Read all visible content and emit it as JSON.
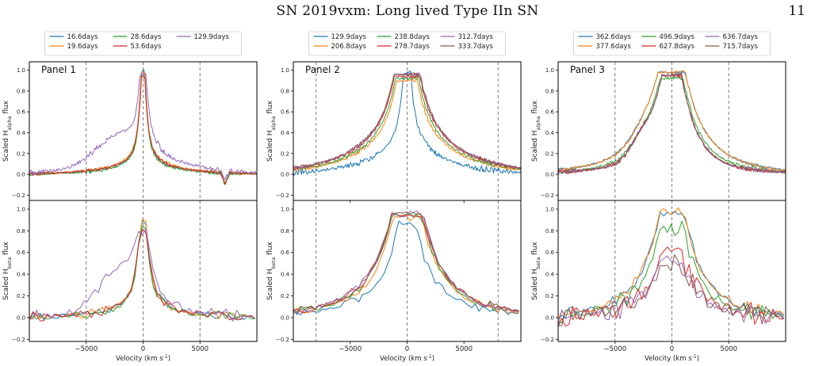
{
  "header": {
    "running_title": "SN 2019vxm: Long lived Type IIn SN",
    "page_number": "11"
  },
  "colors": [
    "#1f77b4",
    "#ff7f0e",
    "#2ca02c",
    "#d62728",
    "#9467bd",
    "#8c564b"
  ],
  "chart_data": [
    {
      "type": "line",
      "panel_label": "Panel 1",
      "xlabel": "Velocity (km s$^{-1}$)",
      "ylabel_top": "Scaled H$_{alpha}$ flux",
      "ylabel_bottom": "Scaled H$_{beta}$ flux",
      "xlim": [
        -10000,
        10000
      ],
      "ylim_top": [
        -0.25,
        1.08
      ],
      "ylim_bottom": [
        -0.22,
        1.08
      ],
      "xticks": [
        -5000,
        0,
        5000
      ],
      "yticks": [
        -0.2,
        0.0,
        0.2,
        0.4,
        0.6,
        0.8,
        1.0
      ],
      "dashed_lines": [
        -5000,
        0,
        5000
      ],
      "legend_columns": 3,
      "legend": [
        "16.6days",
        "19.6days",
        "28.6days",
        "53.6days",
        "129.9days"
      ],
      "series": [
        {
          "name": "16.6days",
          "color_index": 0,
          "top": {
            "peak": 1.0,
            "core": 320,
            "wing": 0.16,
            "wscale": 2800,
            "broad": 0,
            "bshift": 0,
            "bwidth": 2000,
            "noise": 0.012
          },
          "bottom": {
            "peak": 0.92,
            "core": 500,
            "wing": 0.15,
            "wscale": 2600,
            "broad": 0,
            "bshift": 0,
            "bwidth": 2000,
            "noise": 0.03
          }
        },
        {
          "name": "19.6days",
          "color_index": 1,
          "top": {
            "peak": 0.98,
            "core": 330,
            "wing": 0.18,
            "wscale": 2900,
            "broad": 0,
            "bshift": 0,
            "bwidth": 2000,
            "noise": 0.012
          },
          "bottom": {
            "peak": 0.88,
            "core": 520,
            "wing": 0.16,
            "wscale": 2700,
            "broad": 0,
            "bshift": 0,
            "bwidth": 2000,
            "noise": 0.03
          }
        },
        {
          "name": "28.6days",
          "color_index": 2,
          "top": {
            "peak": 0.95,
            "core": 330,
            "wing": 0.14,
            "wscale": 2700,
            "broad": 0,
            "bshift": 0,
            "bwidth": 2000,
            "noise": 0.014
          },
          "bottom": {
            "peak": 0.84,
            "core": 520,
            "wing": 0.14,
            "wscale": 2600,
            "broad": 0,
            "bshift": 0,
            "bwidth": 2000,
            "noise": 0.035
          }
        },
        {
          "name": "53.6days",
          "color_index": 3,
          "top": {
            "peak": 0.94,
            "core": 340,
            "wing": 0.16,
            "wscale": 2900,
            "broad": 0,
            "bshift": 0,
            "bwidth": 2000,
            "noise": 0.013
          },
          "bottom": {
            "peak": 0.82,
            "core": 540,
            "wing": 0.15,
            "wscale": 2700,
            "broad": 0,
            "bshift": 0,
            "bwidth": 2000,
            "noise": 0.035
          }
        },
        {
          "name": "129.9days",
          "color_index": 4,
          "top": {
            "peak": 0.96,
            "core": 360,
            "wing": 0.28,
            "wscale": 3600,
            "broad": 0.22,
            "bshift": -2500,
            "bwidth": 2600,
            "noise": 0.02
          },
          "bottom": {
            "peak": 0.8,
            "core": 560,
            "wing": 0.2,
            "wscale": 3300,
            "broad": 0.32,
            "bshift": -2300,
            "bwidth": 2400,
            "noise": 0.045
          }
        }
      ]
    },
    {
      "type": "line",
      "panel_label": "Panel 2",
      "xlabel": "Velocity (km s$^{-1}$)",
      "ylabel_top": "Scaled H$_{alpha}$ flux",
      "ylabel_bottom": "Scaled H$_{beta}$ flux",
      "xlim": [
        -10000,
        10000
      ],
      "ylim_top": [
        -0.25,
        1.08
      ],
      "ylim_bottom": [
        -0.22,
        1.08
      ],
      "xticks": [
        -5000,
        0,
        5000
      ],
      "yticks": [
        -0.2,
        0.0,
        0.2,
        0.4,
        0.6,
        0.8,
        1.0
      ],
      "dashed_lines": [
        -8000,
        0,
        8000
      ],
      "legend_columns": 3,
      "legend": [
        "129.9days",
        "206.8days",
        "238.8days",
        "278.7days",
        "312.7days",
        "333.7days"
      ],
      "series": [
        {
          "name": "129.9days",
          "color_index": 0,
          "top": {
            "peak": 0.97,
            "core": 450,
            "wing": 0.38,
            "wscale": 3200,
            "broad": 0,
            "bshift": -1500,
            "bwidth": 2500,
            "noise": 0.022
          },
          "bottom": {
            "peak": 0.88,
            "core": 900,
            "wing": 0.5,
            "wscale": 3400,
            "broad": 0,
            "bshift": 0,
            "bwidth": 2500,
            "noise": 0.03
          }
        },
        {
          "name": "206.8days",
          "color_index": 1,
          "top": {
            "peak": 0.9,
            "core": 900,
            "wing": 0.6,
            "wscale": 3500,
            "broad": 0,
            "bshift": 0,
            "bwidth": 2500,
            "noise": 0.014
          },
          "bottom": {
            "peak": 0.92,
            "core": 1500,
            "wing": 0.55,
            "wscale": 3300,
            "broad": 0,
            "bshift": 0,
            "bwidth": 2500,
            "noise": 0.028
          }
        },
        {
          "name": "238.8days",
          "color_index": 2,
          "top": {
            "peak": 0.92,
            "core": 1000,
            "wing": 0.62,
            "wscale": 3600,
            "broad": 0,
            "bshift": 0,
            "bwidth": 2500,
            "noise": 0.014
          },
          "bottom": {
            "peak": 0.94,
            "core": 1600,
            "wing": 0.55,
            "wscale": 3300,
            "broad": 0,
            "bshift": 0,
            "bwidth": 2500,
            "noise": 0.028
          }
        },
        {
          "name": "278.7days",
          "color_index": 3,
          "top": {
            "peak": 0.94,
            "core": 1100,
            "wing": 0.64,
            "wscale": 3800,
            "broad": 0,
            "bshift": 0,
            "bwidth": 2500,
            "noise": 0.014
          },
          "bottom": {
            "peak": 0.95,
            "core": 1700,
            "wing": 0.56,
            "wscale": 3400,
            "broad": 0,
            "bshift": 0,
            "bwidth": 2500,
            "noise": 0.028
          }
        },
        {
          "name": "312.7days",
          "color_index": 4,
          "top": {
            "peak": 0.96,
            "core": 1150,
            "wing": 0.64,
            "wscale": 3900,
            "broad": 0,
            "bshift": 0,
            "bwidth": 2500,
            "noise": 0.014
          },
          "bottom": {
            "peak": 0.95,
            "core": 1700,
            "wing": 0.56,
            "wscale": 3400,
            "broad": 0,
            "bshift": 0,
            "bwidth": 2500,
            "noise": 0.028
          }
        },
        {
          "name": "333.7days",
          "color_index": 5,
          "top": {
            "peak": 0.96,
            "core": 1150,
            "wing": 0.64,
            "wscale": 3900,
            "broad": 0,
            "bshift": 0,
            "bwidth": 2500,
            "noise": 0.014
          },
          "bottom": {
            "peak": 0.95,
            "core": 1700,
            "wing": 0.56,
            "wscale": 3400,
            "broad": 0,
            "bshift": 0,
            "bwidth": 2500,
            "noise": 0.028
          }
        }
      ]
    },
    {
      "type": "line",
      "panel_label": "Panel 3",
      "xlabel": "Velocity (km s$^{-1}$)",
      "ylabel_top": "Scaled H$_{alpha}$ flux",
      "ylabel_bottom": "Scaled H$_{beta}$ flux",
      "xlim": [
        -10000,
        10000
      ],
      "ylim_top": [
        -0.25,
        1.08
      ],
      "ylim_bottom": [
        -0.22,
        1.08
      ],
      "xticks": [
        -5000,
        0,
        5000
      ],
      "yticks": [
        -0.2,
        0.0,
        0.2,
        0.4,
        0.6,
        0.8,
        1.0
      ],
      "dashed_lines": [
        -5000,
        0,
        5000
      ],
      "legend_columns": 3,
      "legend": [
        "362.6days",
        "377.6days",
        "496.9days",
        "627.8days",
        "636.7days",
        "715.7days"
      ],
      "series": [
        {
          "name": "362.6days",
          "color_index": 0,
          "top": {
            "peak": 0.98,
            "core": 1600,
            "wing": 0.5,
            "wscale": 3000,
            "broad": 0.08,
            "bshift": -2600,
            "bwidth": 1400,
            "noise": 0.012
          },
          "bottom": {
            "peak": 0.96,
            "core": 1800,
            "wing": 0.35,
            "wscale": 2600,
            "broad": 0,
            "bshift": 0,
            "bwidth": 2000,
            "noise": 0.04
          }
        },
        {
          "name": "377.6days",
          "color_index": 1,
          "top": {
            "peak": 0.98,
            "core": 1600,
            "wing": 0.5,
            "wscale": 3000,
            "broad": 0.08,
            "bshift": -2600,
            "bwidth": 1400,
            "noise": 0.012
          },
          "bottom": {
            "peak": 0.98,
            "core": 1800,
            "wing": 0.35,
            "wscale": 2600,
            "broad": 0,
            "bshift": 0,
            "bwidth": 2000,
            "noise": 0.04
          }
        },
        {
          "name": "496.9days",
          "color_index": 2,
          "top": {
            "peak": 0.92,
            "core": 1500,
            "wing": 0.42,
            "wscale": 2300,
            "broad": 0.1,
            "bshift": -2600,
            "bwidth": 1400,
            "noise": 0.014
          },
          "bottom": {
            "peak": 0.82,
            "core": 1700,
            "wing": 0.3,
            "wscale": 2400,
            "broad": 0,
            "bshift": 0,
            "bwidth": 2000,
            "noise": 0.06
          }
        },
        {
          "name": "627.8days",
          "color_index": 3,
          "top": {
            "peak": 0.95,
            "core": 1500,
            "wing": 0.38,
            "wscale": 1700,
            "broad": 0.14,
            "bshift": -2700,
            "bwidth": 1300,
            "noise": 0.016
          },
          "bottom": {
            "peak": 0.6,
            "core": 1600,
            "wing": 0.2,
            "wscale": 2200,
            "broad": 0,
            "bshift": 0,
            "bwidth": 2000,
            "noise": 0.08
          }
        },
        {
          "name": "636.7days",
          "color_index": 4,
          "top": {
            "peak": 0.95,
            "core": 1500,
            "wing": 0.38,
            "wscale": 1700,
            "broad": 0.14,
            "bshift": -2700,
            "bwidth": 1300,
            "noise": 0.016
          },
          "bottom": {
            "peak": 0.55,
            "core": 1600,
            "wing": 0.18,
            "wscale": 2200,
            "broad": 0,
            "bshift": 0,
            "bwidth": 2000,
            "noise": 0.08
          }
        },
        {
          "name": "715.7days",
          "color_index": 5,
          "top": {
            "peak": 0.95,
            "core": 1500,
            "wing": 0.38,
            "wscale": 1700,
            "broad": 0.14,
            "bshift": -2700,
            "bwidth": 1300,
            "noise": 0.016
          },
          "bottom": {
            "peak": 0.5,
            "core": 1600,
            "wing": 0.18,
            "wscale": 2200,
            "broad": 0,
            "bshift": 0,
            "bwidth": 2000,
            "noise": 0.08
          }
        }
      ]
    }
  ]
}
